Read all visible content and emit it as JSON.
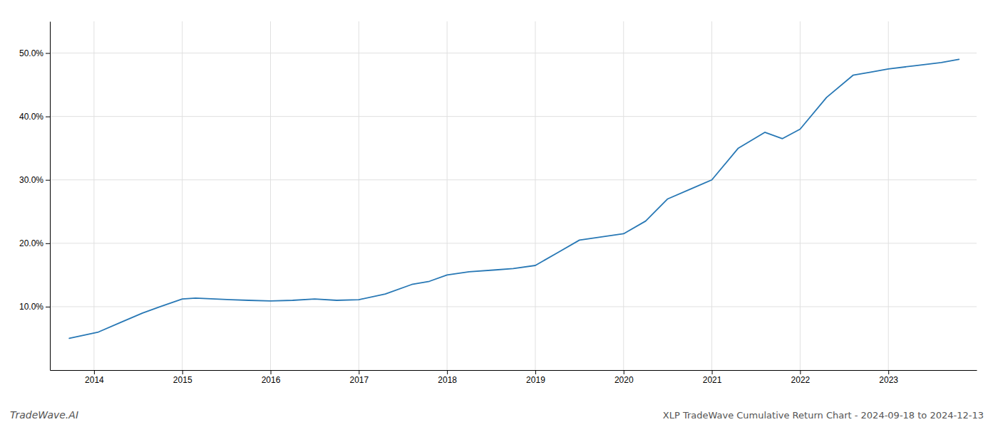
{
  "chart_data": {
    "type": "line",
    "title": "XLP TradeWave Cumulative Return Chart - 2024-09-18 to 2024-12-13",
    "annotations": [
      "TradeWave.AI"
    ],
    "color": "#2878b5",
    "grid": true,
    "x": [
      2013.72,
      2014.05,
      2014.3,
      2014.55,
      2014.75,
      2015.0,
      2015.15,
      2015.55,
      2015.75,
      2016.0,
      2016.25,
      2016.5,
      2016.75,
      2017.0,
      2017.3,
      2017.6,
      2017.8,
      2018.0,
      2018.25,
      2018.55,
      2018.75,
      2019.0,
      2019.25,
      2019.5,
      2019.75,
      2020.0,
      2020.25,
      2020.5,
      2020.75,
      2021.0,
      2021.3,
      2021.6,
      2021.8,
      2022.0,
      2022.3,
      2022.6,
      2022.8,
      2023.0,
      2023.3,
      2023.6,
      2023.8
    ],
    "values": [
      5.0,
      6.0,
      7.5,
      9.0,
      10.0,
      11.2,
      11.35,
      11.1,
      11.0,
      10.9,
      11.0,
      11.2,
      11.0,
      11.1,
      12.0,
      13.5,
      14.0,
      15.0,
      15.5,
      15.8,
      16.0,
      16.5,
      18.5,
      20.5,
      21.0,
      21.5,
      23.5,
      27.0,
      28.5,
      30.0,
      35.0,
      37.5,
      36.5,
      38.0,
      43.0,
      46.5,
      47.0,
      47.5,
      48.0,
      48.5,
      49.0
    ],
    "xlim": [
      2013.5,
      2024.0
    ],
    "ylim": [
      0,
      55
    ],
    "xticks": [
      2014,
      2015,
      2016,
      2017,
      2018,
      2019,
      2020,
      2021,
      2022,
      2023
    ],
    "yticks": [
      {
        "value": 10.0,
        "label": "10.0%"
      },
      {
        "value": 20.0,
        "label": "20.0%"
      },
      {
        "value": 30.0,
        "label": "30.0%"
      },
      {
        "value": 40.0,
        "label": "40.0%"
      },
      {
        "value": 50.0,
        "label": "50.0%"
      }
    ]
  }
}
